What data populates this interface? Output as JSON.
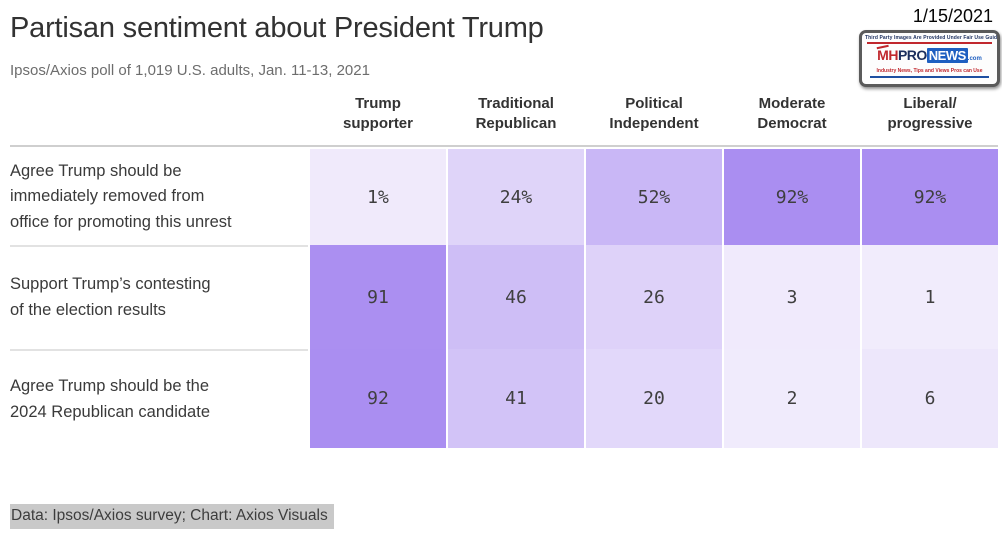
{
  "page": {
    "title": "Partisan sentiment about President Trump",
    "subtitle": "Ipsos/Axios poll of 1,019 U.S. adults, Jan. 11-13, 2021",
    "date_overlay": "1/15/2021",
    "footer": "Data: Ipsos/Axios survey; Chart: Axios Visuals"
  },
  "logo": {
    "top_text": "Third Party Images Are Provided Under Fair Use Guidelines.",
    "wordmark_mh": "MH",
    "wordmark_pro": "PRO",
    "wordmark_news": "NEWS",
    "wordmark_dotcom": ".com",
    "tagline": "Industry News, Tips and Views Pros can Use",
    "colors": {
      "red": "#c0272d",
      "blue": "#1e5fc1",
      "navy": "#1c2f5e"
    }
  },
  "chart_data": {
    "type": "heatmap",
    "title": "Partisan sentiment about President Trump",
    "subtitle": "Ipsos/Axios poll of 1,019 U.S. adults, Jan. 11-13, 2021",
    "unit": "%",
    "legend_position": "none",
    "color_scale": {
      "min_color": "#f2edfc",
      "max_color": "#a486f0",
      "domain": [
        0,
        100
      ]
    },
    "columns": [
      "Trump\nsupporter",
      "Traditional\nRepublican",
      "Political\nIndependent",
      "Moderate\nDemocrat",
      "Liberal/\nprogressive"
    ],
    "rows": [
      {
        "label": "Agree Trump should be\nimmediately removed from\noffice for promoting this unrest",
        "values": [
          "1%",
          "24%",
          "52%",
          "92%",
          "92%"
        ],
        "numeric": [
          1,
          24,
          52,
          92,
          92
        ],
        "colors": [
          "#f0eafb",
          "#dfd4f9",
          "#c9b7f6",
          "#aa8ef1",
          "#aa8ef1"
        ]
      },
      {
        "label": "Support Trump’s contesting\nof the election results",
        "values": [
          "91",
          "46",
          "26",
          "3",
          "1"
        ],
        "numeric": [
          91,
          46,
          26,
          3,
          1
        ],
        "colors": [
          "#ab8ff1",
          "#cebef6",
          "#ded2f9",
          "#f0eafc",
          "#f1ecfc"
        ]
      },
      {
        "label": "Agree Trump should be the\n2024 Republican candidate",
        "values": [
          "92",
          "41",
          "20",
          "2",
          "6"
        ],
        "numeric": [
          92,
          41,
          20,
          2,
          6
        ],
        "colors": [
          "#aa8ef1",
          "#d2c3f7",
          "#e2d8fa",
          "#f0ebfc",
          "#ede7fb"
        ]
      }
    ],
    "source_note": "Data: Ipsos/Axios survey; Chart: Axios Visuals"
  }
}
